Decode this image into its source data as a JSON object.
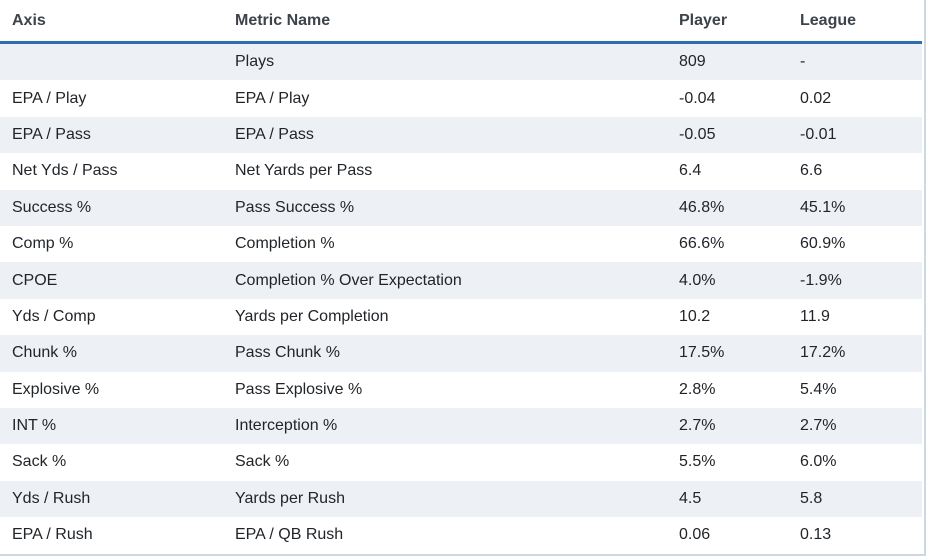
{
  "table": {
    "columns": [
      "Axis",
      "Metric Name",
      "Player",
      "League"
    ],
    "rows": [
      {
        "axis": "",
        "metric": "Plays",
        "player": "809",
        "league": "-"
      },
      {
        "axis": "EPA / Play",
        "metric": "EPA / Play",
        "player": "-0.04",
        "league": "0.02"
      },
      {
        "axis": "EPA / Pass",
        "metric": "EPA / Pass",
        "player": "-0.05",
        "league": "-0.01"
      },
      {
        "axis": "Net Yds / Pass",
        "metric": "Net Yards per Pass",
        "player": "6.4",
        "league": "6.6"
      },
      {
        "axis": "Success %",
        "metric": "Pass Success %",
        "player": "46.8%",
        "league": "45.1%"
      },
      {
        "axis": "Comp %",
        "metric": "Completion %",
        "player": "66.6%",
        "league": "60.9%"
      },
      {
        "axis": "CPOE",
        "metric": "Completion % Over Expectation",
        "player": "4.0%",
        "league": "-1.9%"
      },
      {
        "axis": "Yds / Comp",
        "metric": "Yards per Completion",
        "player": "10.2",
        "league": "11.9"
      },
      {
        "axis": "Chunk %",
        "metric": "Pass Chunk %",
        "player": "17.5%",
        "league": "17.2%"
      },
      {
        "axis": "Explosive %",
        "metric": "Pass Explosive %",
        "player": "2.8%",
        "league": "5.4%"
      },
      {
        "axis": "INT %",
        "metric": "Interception %",
        "player": "2.7%",
        "league": "2.7%"
      },
      {
        "axis": "Sack %",
        "metric": "Sack %",
        "player": "5.5%",
        "league": "6.0%"
      },
      {
        "axis": "Yds / Rush",
        "metric": "Yards per Rush",
        "player": "4.5",
        "league": "5.8"
      },
      {
        "axis": "EPA / Rush",
        "metric": "EPA / QB Rush",
        "player": "0.06",
        "league": "0.13"
      }
    ]
  },
  "colors": {
    "header_divider": "#2d6ead",
    "row_stripe": "#edf1f6",
    "outer_border": "#ccd8e2",
    "header_text": "#3c434a",
    "body_text": "#212529"
  }
}
